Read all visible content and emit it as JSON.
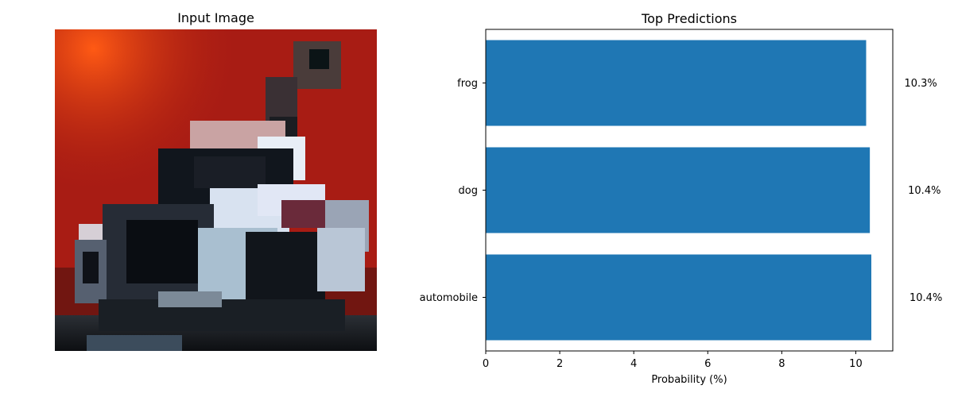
{
  "left_panel": {
    "title": "Input Image"
  },
  "chart_data": {
    "type": "bar",
    "orientation": "horizontal",
    "title": "Top Predictions",
    "xlabel": "Probability (%)",
    "ylabel": "",
    "xlim": [
      0,
      11.0
    ],
    "xticks": [
      0,
      2,
      4,
      6,
      8,
      10
    ],
    "categories": [
      "automobile",
      "dog",
      "frog"
    ],
    "values": [
      10.42,
      10.38,
      10.28
    ],
    "value_labels": [
      "10.4%",
      "10.4%",
      "10.3%"
    ],
    "bar_color": "#1f77b4",
    "grid": false,
    "legend": "none"
  }
}
